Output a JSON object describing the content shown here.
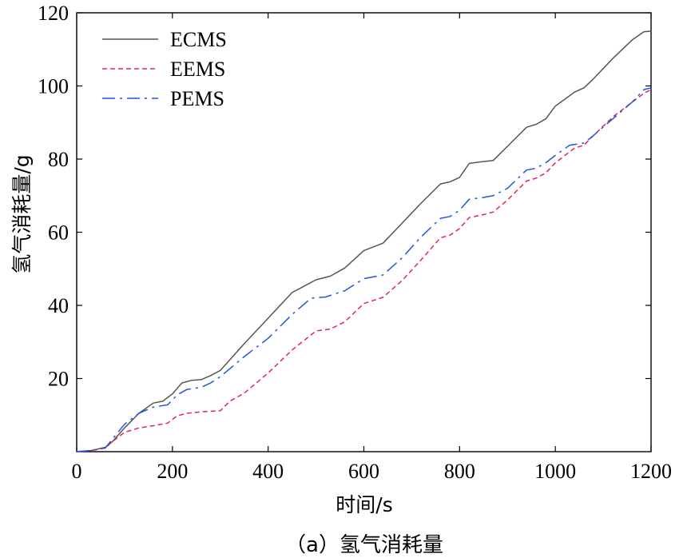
{
  "chart_data": {
    "type": "line",
    "title": "",
    "caption": "（a）氢气消耗量",
    "xlabel": "时间/s",
    "ylabel": "氢气消耗量/g",
    "xlim": [
      0,
      1200
    ],
    "ylim": [
      0,
      120
    ],
    "xticks": [
      0,
      200,
      400,
      600,
      800,
      1000,
      1200
    ],
    "yticks": [
      20,
      40,
      60,
      80,
      100,
      120
    ],
    "grid": false,
    "legend_position": "top-left",
    "series": [
      {
        "name": "ECMS",
        "style": "solid",
        "color": "#555555",
        "x": [
          0,
          30,
          60,
          75,
          100,
          130,
          160,
          180,
          200,
          220,
          240,
          260,
          280,
          300,
          350,
          400,
          450,
          500,
          530,
          560,
          600,
          640,
          680,
          720,
          760,
          780,
          800,
          820,
          840,
          870,
          900,
          940,
          960,
          980,
          1000,
          1040,
          1060,
          1080,
          1120,
          1160,
          1185,
          1200
        ],
        "y": [
          0,
          0.3,
          1.2,
          2.8,
          6.5,
          10.5,
          13.3,
          13.8,
          15.8,
          18.8,
          19.5,
          19.7,
          20.8,
          22.2,
          29.5,
          36.5,
          43.5,
          47,
          48,
          50.2,
          55,
          57,
          62.5,
          68,
          73.2,
          73.8,
          75,
          78.8,
          79.2,
          79.6,
          83.5,
          88.7,
          89.5,
          91,
          94.5,
          98.3,
          99.5,
          102,
          107.5,
          112.5,
          114.8,
          115
        ]
      },
      {
        "name": "EEMS",
        "style": "dashed",
        "color": "#e0245e",
        "x": [
          0,
          30,
          60,
          75,
          100,
          130,
          160,
          190,
          210,
          230,
          260,
          300,
          320,
          350,
          400,
          450,
          500,
          530,
          560,
          600,
          640,
          680,
          720,
          760,
          780,
          800,
          820,
          850,
          870,
          900,
          940,
          960,
          980,
          1000,
          1040,
          1060,
          1080,
          1120,
          1160,
          1185,
          1200
        ],
        "y": [
          0,
          0.3,
          1.0,
          2.8,
          5.3,
          6.5,
          7.1,
          7.8,
          9.8,
          10.5,
          10.9,
          11.2,
          13.8,
          16.0,
          21.5,
          27.8,
          33.0,
          33.5,
          35.5,
          40.5,
          42.2,
          46.8,
          52.5,
          58.5,
          59.2,
          61.0,
          64.0,
          64.8,
          65.5,
          68.8,
          74.0,
          74.8,
          76.2,
          79.0,
          83.0,
          83.8,
          86.5,
          91.5,
          95.5,
          98.0,
          99.0
        ]
      },
      {
        "name": "PEMS",
        "style": "dashdot",
        "color": "#2255dd",
        "x": [
          0,
          30,
          60,
          75,
          100,
          130,
          160,
          190,
          210,
          230,
          260,
          280,
          300,
          350,
          400,
          450,
          490,
          520,
          560,
          600,
          640,
          680,
          720,
          760,
          780,
          800,
          820,
          850,
          870,
          900,
          940,
          960,
          980,
          1000,
          1030,
          1060,
          1080,
          1120,
          1160,
          1185,
          1200
        ],
        "y": [
          0,
          0.3,
          1.0,
          3.5,
          7.5,
          10.5,
          12.2,
          12.8,
          15.5,
          17.0,
          17.6,
          18.8,
          20.5,
          26.0,
          31.0,
          37.5,
          42.0,
          42.3,
          44.0,
          47.3,
          48.3,
          53.0,
          58.8,
          63.8,
          64.3,
          66.0,
          69.0,
          69.5,
          70.0,
          72.0,
          77.0,
          77.5,
          79.0,
          81.0,
          83.8,
          84.4,
          86.5,
          91.0,
          95.5,
          99.0,
          99.5
        ]
      }
    ]
  }
}
